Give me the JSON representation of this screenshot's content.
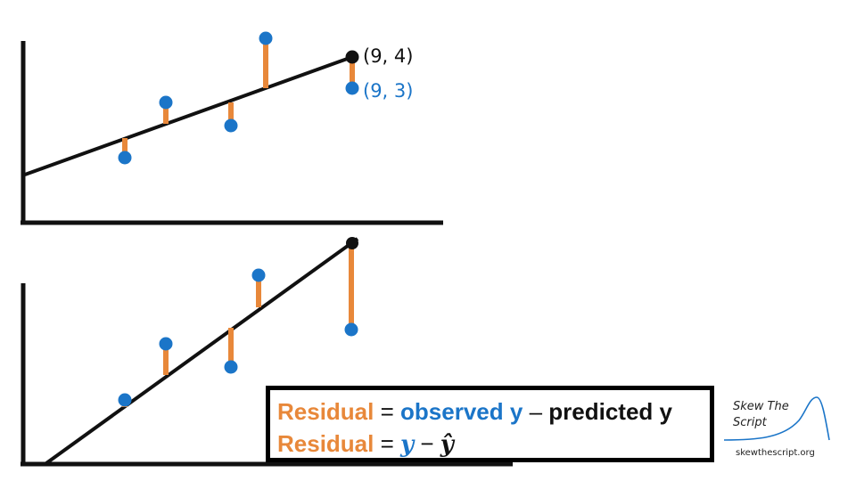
{
  "labels": {
    "predicted_point": "(9, 4)",
    "observed_point": "(9, 3)"
  },
  "formula": {
    "line1": {
      "term": "Residual",
      "equals": "=",
      "observed": "observed y",
      "minus": "–",
      "predicted": "predicted y"
    },
    "line2": {
      "term": "Residual",
      "equals": "=",
      "y": "y",
      "minus": "−",
      "yhat": "ŷ"
    }
  },
  "branding": {
    "logo_text": "Skew The Script",
    "url": "skewthescript.org"
  },
  "colors": {
    "point": "#1b75c8",
    "residual": "#e8883a",
    "line": "#111111",
    "axis": "#111111"
  }
}
